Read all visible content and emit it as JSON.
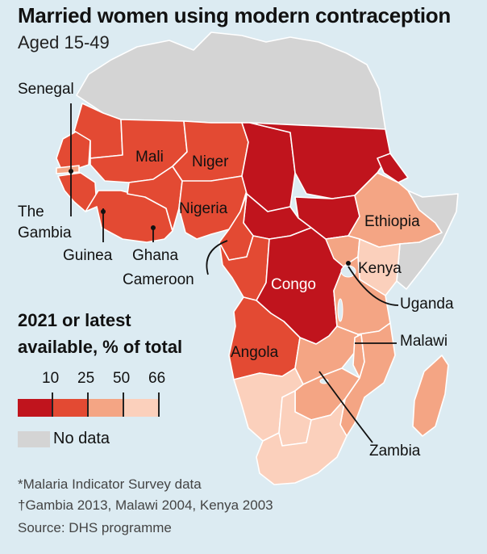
{
  "title": "Married women using modern contraception",
  "subtitle": "Aged 15-49",
  "legend": {
    "title_line1": "2021 or latest",
    "title_line2": "available, % of total",
    "ticks": [
      "10",
      "25",
      "50",
      "66"
    ],
    "colors": [
      "#c0141d",
      "#e34a33",
      "#f4a584",
      "#fbd0bc"
    ],
    "no_data_label": "No data",
    "no_data_color": "#d4d4d4"
  },
  "map_colors": {
    "ocean": "#dcebf2",
    "border": "#ffffff",
    "lake": "#dcebf2"
  },
  "country_labels": {
    "senegal": "Senegal",
    "mali": "Mali",
    "niger": "Niger",
    "the_gambia_1": "The",
    "the_gambia_2": "Gambia",
    "nigeria": "Nigeria",
    "ethiopia": "Ethiopia",
    "guinea": "Guinea",
    "ghana": "Ghana",
    "kenya": "Kenya",
    "cameroon": "Cameroon",
    "congo": "Congo",
    "uganda": "Uganda",
    "malawi": "Malawi",
    "angola": "Angola",
    "zambia": "Zambia"
  },
  "footnotes": {
    "note1": "*Malaria Indicator Survey data",
    "note2": "†Gambia 2013, Malawi 2004, Kenya 2003",
    "source": "Source: DHS programme"
  }
}
